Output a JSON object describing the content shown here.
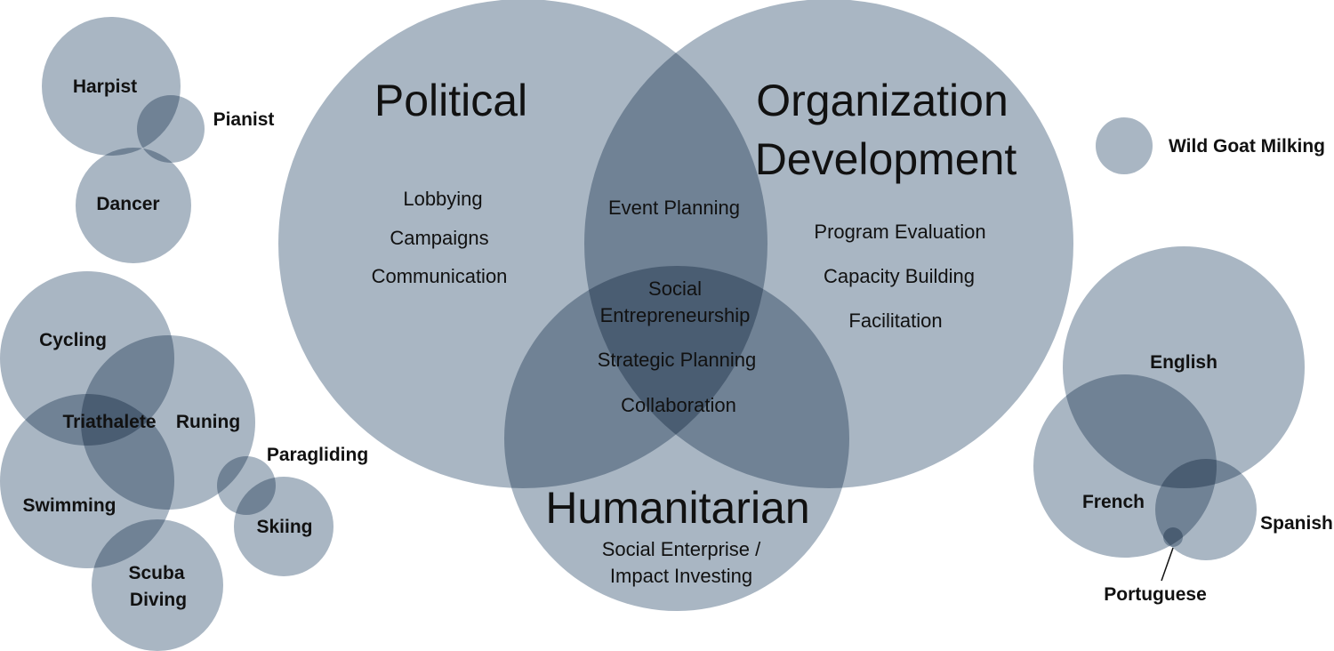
{
  "colors": {
    "circle_fill": "#a9b6c3",
    "text": "#111111",
    "pointer": "#111111"
  },
  "venn": {
    "political": {
      "title": "Political",
      "items": [
        "Lobbying",
        "Campaigns",
        "Communication"
      ]
    },
    "organization": {
      "title_line1": "Organization",
      "title_line2": "Development",
      "items": [
        "Program Evaluation",
        "Capacity Building",
        "Facilitation"
      ]
    },
    "humanitarian": {
      "title": "Humanitarian",
      "items": [
        "Social Enterprise /",
        "Impact Investing"
      ]
    },
    "political_org_overlap": "Event Planning",
    "center": {
      "line1": "Social",
      "line2": "Entrepreneurship",
      "line3": "Strategic Planning",
      "line4": "Collaboration"
    }
  },
  "arts": [
    "Harpist",
    "Pianist",
    "Dancer"
  ],
  "sports": [
    "Cycling",
    "Triathalete",
    "Runing",
    "Swimming",
    "Scuba",
    "Diving",
    "Paragliding",
    "Skiing"
  ],
  "hobby": "Wild Goat Milking",
  "languages": [
    "English",
    "French",
    "Spanish",
    "Portuguese"
  ]
}
